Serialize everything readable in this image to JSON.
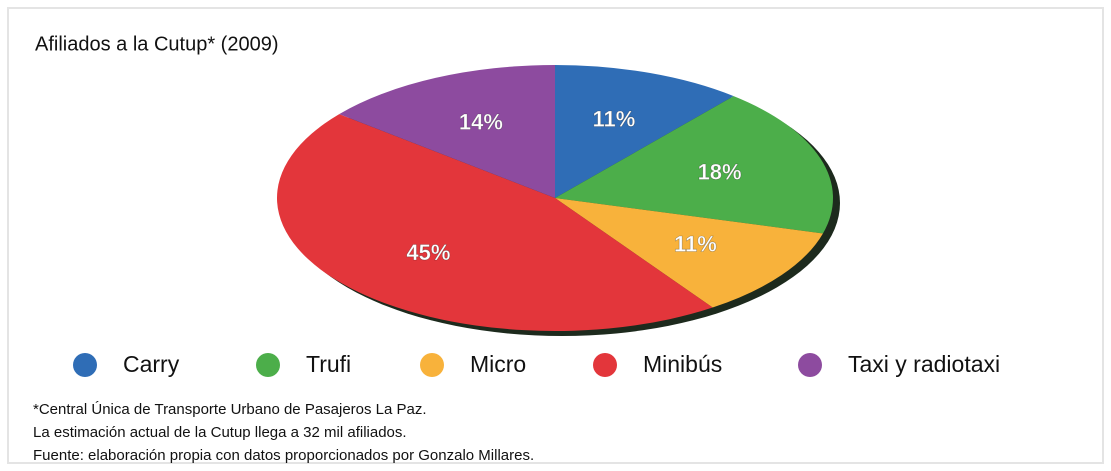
{
  "chart_data": {
    "type": "pie",
    "title": "Afiliados a la Cutup* (2009)",
    "categories": [
      "Carry",
      "Trufi",
      "Micro",
      "Minibús",
      "Taxi y radiotaxi"
    ],
    "values": [
      11,
      18,
      11,
      45,
      14
    ],
    "value_labels": [
      "11%",
      "18%",
      "11%",
      "45%",
      "14%"
    ],
    "colors": [
      "#2f6db6",
      "#4cae4a",
      "#f8b23b",
      "#e3363b",
      "#8d4b9f"
    ],
    "notes": [
      "*Central Única de Transporte Urbano de Pasajeros La Paz.",
      "La estimación actual de la Cutup llega a 32 mil afiliados.",
      "Fuente: elaboración propia con datos proporcionados por Gonzalo Millares."
    ]
  }
}
